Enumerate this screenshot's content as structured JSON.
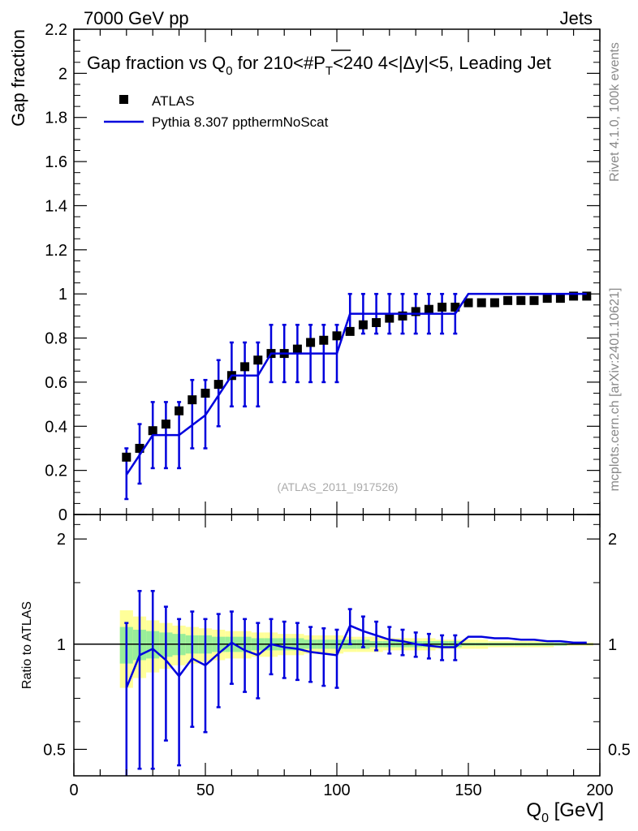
{
  "header": {
    "left": "7000 GeV pp",
    "right": "Jets",
    "side_rivet": "Rivet 4.1.0,  100k events",
    "side_mcplots": "mcplots.cern.ch [arXiv:2401.10621]"
  },
  "chart_data": [
    {
      "panel": "main",
      "type": "scatter",
      "title": "Gap fraction vs Q",
      "title_subscript": "0",
      "title_tail": " for 210<#P",
      "title_tail_subscript": "T",
      "title_end": "<240  4<|Δy|<5, Leading Jet",
      "ylabel": "Gap fraction",
      "watermark": "(ATLAS_2011_I917526)",
      "xlim": [
        0,
        200
      ],
      "ylim": [
        0,
        2.2
      ],
      "yticks": [
        0,
        0.2,
        0.4,
        0.6,
        0.8,
        1,
        1.2,
        1.4,
        1.6,
        1.8,
        2,
        2.2
      ],
      "ytick_labels": [
        "0",
        "0.2",
        "0.4",
        "0.6",
        "0.8",
        "1",
        "1.2",
        "1.4",
        "1.6",
        "1.8",
        "2",
        "2.2"
      ],
      "legend": [
        {
          "name": "ATLAS",
          "marker": "square",
          "color": "#000000"
        },
        {
          "name": "Pythia 8.307 ppthermNoScat",
          "marker": "line",
          "color": "#0000dd"
        }
      ],
      "series": [
        {
          "name": "ATLAS",
          "x": [
            20,
            25,
            30,
            35,
            40,
            45,
            50,
            55,
            60,
            65,
            70,
            75,
            80,
            85,
            90,
            95,
            100,
            105,
            110,
            115,
            120,
            125,
            130,
            135,
            140,
            145,
            150,
            155,
            160,
            165,
            170,
            175,
            180,
            185,
            190,
            195
          ],
          "y": [
            0.26,
            0.3,
            0.38,
            0.41,
            0.47,
            0.52,
            0.55,
            0.59,
            0.63,
            0.67,
            0.7,
            0.73,
            0.73,
            0.75,
            0.78,
            0.79,
            0.81,
            0.83,
            0.86,
            0.87,
            0.89,
            0.9,
            0.92,
            0.93,
            0.94,
            0.94,
            0.96,
            0.96,
            0.96,
            0.97,
            0.97,
            0.97,
            0.98,
            0.98,
            0.99,
            0.99
          ]
        },
        {
          "name": "Pythia 8.307 ppthermNoScat",
          "step_edges": [
            17.5,
            27.5,
            37.5,
            42.5,
            47.5,
            52.5,
            57.5,
            67.5,
            72.5,
            102.5,
            102.5,
            147.5,
            152.5,
            187.5,
            197.5
          ],
          "step_values": [
            0.18,
            0.28,
            0.36,
            0.36,
            0.45,
            0.45,
            0.55,
            0.63,
            0.73,
            0.73,
            0.91,
            0.91,
            1.0,
            1.0,
            1.0
          ],
          "line_x": [
            20,
            30,
            40,
            50,
            60,
            70,
            75,
            100,
            105,
            145,
            150,
            195
          ],
          "line_y": [
            0.18,
            0.36,
            0.36,
            0.45,
            0.63,
            0.63,
            0.73,
            0.73,
            0.91,
            0.91,
            1.0,
            1.0
          ],
          "err_x": [
            20,
            25,
            30,
            35,
            40,
            45,
            50,
            55,
            60,
            65,
            70,
            75,
            80,
            85,
            90,
            95,
            100,
            105,
            110,
            115,
            120,
            125,
            130,
            135,
            140,
            145
          ],
          "err_center": [
            0.18,
            0.27,
            0.36,
            0.36,
            0.36,
            0.45,
            0.45,
            0.55,
            0.63,
            0.63,
            0.63,
            0.73,
            0.73,
            0.73,
            0.73,
            0.73,
            0.73,
            0.91,
            0.91,
            0.91,
            0.91,
            0.91,
            0.91,
            0.91,
            0.91,
            0.91
          ],
          "err_low": [
            0.07,
            0.14,
            0.21,
            0.21,
            0.21,
            0.3,
            0.3,
            0.4,
            0.49,
            0.49,
            0.49,
            0.6,
            0.6,
            0.6,
            0.6,
            0.6,
            0.6,
            0.82,
            0.82,
            0.82,
            0.82,
            0.82,
            0.82,
            0.82,
            0.82,
            0.82
          ],
          "err_high": [
            0.3,
            0.41,
            0.51,
            0.51,
            0.51,
            0.61,
            0.61,
            0.7,
            0.78,
            0.78,
            0.78,
            0.86,
            0.86,
            0.86,
            0.86,
            0.86,
            0.86,
            1.0,
            1.0,
            1.0,
            1.0,
            1.0,
            1.0,
            1.0,
            1.0,
            1.0
          ]
        }
      ]
    },
    {
      "panel": "ratio",
      "type": "line",
      "ylabel": "Ratio to ATLAS",
      "xlabel": "Q",
      "xlabel_subscript": "0",
      "xlabel_tail": " [GeV]",
      "xlim": [
        0,
        200
      ],
      "ylim": [
        0.42,
        2.35
      ],
      "yscale": "log",
      "xticks": [
        0,
        50,
        100,
        150,
        200
      ],
      "xtick_labels": [
        "0",
        "50",
        "100",
        "150",
        "200"
      ],
      "yticks": [
        0.5,
        1,
        2
      ],
      "ytick_labels": [
        "0.5",
        "1",
        "2"
      ],
      "band_x": [
        17.5,
        22.5,
        27.5,
        32.5,
        37.5,
        42.5,
        47.5,
        52.5,
        57.5,
        62.5,
        67.5,
        72.5,
        77.5,
        82.5,
        87.5,
        92.5,
        97.5,
        102.5,
        107.5,
        112.5,
        117.5,
        122.5,
        127.5,
        132.5,
        137.5,
        142.5,
        147.5,
        152.5,
        157.5,
        162.5,
        167.5,
        172.5,
        177.5,
        182.5,
        187.5,
        192.5,
        197.5
      ],
      "band_yellow": [
        0.25,
        0.2,
        0.17,
        0.15,
        0.13,
        0.12,
        0.11,
        0.1,
        0.09,
        0.09,
        0.08,
        0.08,
        0.07,
        0.07,
        0.06,
        0.06,
        0.06,
        0.05,
        0.05,
        0.05,
        0.04,
        0.04,
        0.04,
        0.04,
        0.03,
        0.03,
        0.03,
        0.03,
        0.02,
        0.02,
        0.02,
        0.02,
        0.02,
        0.01,
        0.01,
        0.01
      ],
      "band_green": [
        0.12,
        0.1,
        0.09,
        0.08,
        0.07,
        0.06,
        0.06,
        0.05,
        0.05,
        0.05,
        0.04,
        0.04,
        0.04,
        0.04,
        0.03,
        0.03,
        0.03,
        0.03,
        0.03,
        0.02,
        0.02,
        0.02,
        0.02,
        0.02,
        0.02,
        0.02,
        0.01,
        0.01,
        0.01,
        0.01,
        0.01,
        0.01,
        0.01,
        0.01,
        0.005,
        0.005
      ],
      "ratio_x": [
        20,
        25,
        30,
        35,
        40,
        45,
        50,
        55,
        60,
        65,
        70,
        75,
        80,
        85,
        90,
        95,
        100,
        105,
        110,
        115,
        120,
        125,
        130,
        135,
        140,
        145,
        150,
        155,
        160,
        165,
        170,
        175,
        180,
        185,
        190,
        195
      ],
      "ratio_y": [
        0.75,
        0.93,
        0.97,
        0.9,
        0.81,
        0.91,
        0.87,
        0.94,
        1.01,
        0.96,
        0.93,
        1.0,
        0.98,
        0.97,
        0.95,
        0.94,
        0.93,
        1.13,
        1.09,
        1.06,
        1.03,
        1.02,
        1.0,
        0.99,
        0.98,
        0.98,
        1.05,
        1.05,
        1.04,
        1.04,
        1.03,
        1.03,
        1.02,
        1.02,
        1.01,
        1.01
      ],
      "ratio_err_x": [
        20,
        25,
        30,
        35,
        40,
        45,
        50,
        55,
        60,
        65,
        70,
        75,
        80,
        85,
        90,
        95,
        100,
        105,
        110,
        115,
        120,
        125,
        130,
        135,
        140,
        145
      ],
      "ratio_err_low": [
        0.38,
        0.44,
        0.44,
        0.53,
        0.45,
        0.58,
        0.56,
        0.66,
        0.77,
        0.73,
        0.7,
        0.82,
        0.8,
        0.79,
        0.78,
        0.76,
        0.75,
        1.0,
        0.98,
        0.96,
        0.94,
        0.93,
        0.92,
        0.91,
        0.9,
        0.9
      ],
      "ratio_err_high": [
        1.15,
        1.42,
        1.42,
        1.28,
        1.18,
        1.24,
        1.18,
        1.22,
        1.24,
        1.18,
        1.15,
        1.18,
        1.16,
        1.15,
        1.12,
        1.11,
        1.1,
        1.26,
        1.2,
        1.16,
        1.12,
        1.1,
        1.08,
        1.07,
        1.06,
        1.06
      ]
    }
  ],
  "colors": {
    "data": "#000000",
    "mc": "#0000dd",
    "band_yellow": "#ffff99",
    "band_green": "#99ee99",
    "axis": "#000000",
    "side_text": "#888888"
  }
}
